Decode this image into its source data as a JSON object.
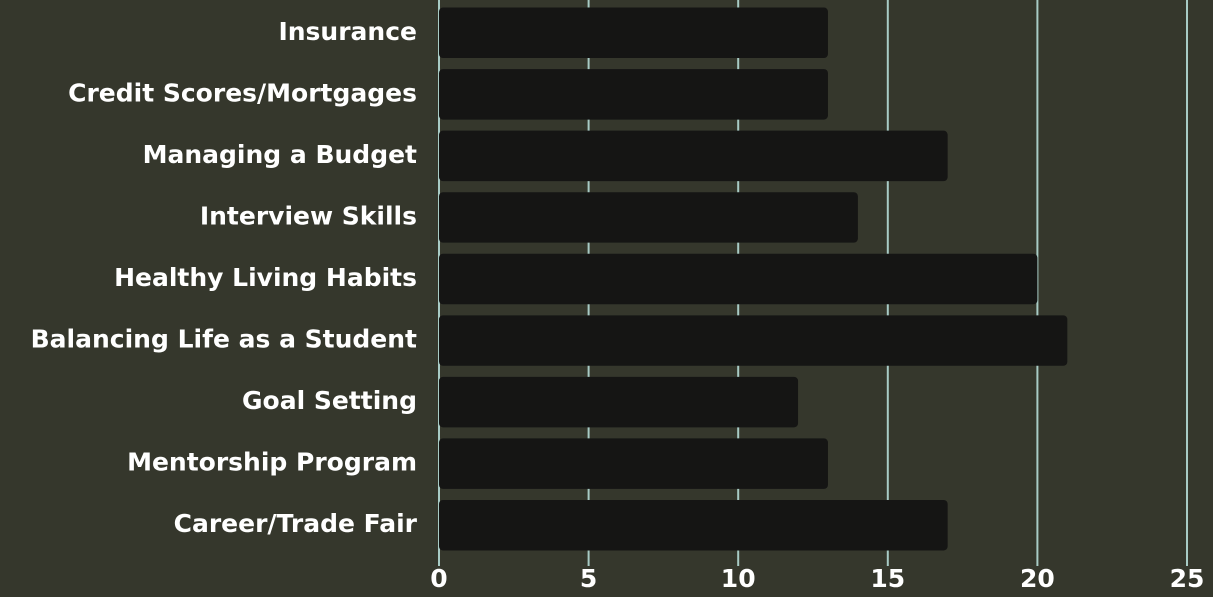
{
  "chart_data": {
    "type": "bar",
    "orientation": "horizontal",
    "categories": [
      "Insurance",
      "Credit Scores/Mortgages",
      "Managing a Budget",
      "Interview Skills",
      "Healthy Living Habits",
      "Balancing Life as a Student",
      "Goal Setting",
      "Mentorship Program",
      "Career/Trade Fair"
    ],
    "values": [
      13,
      13,
      17,
      14,
      20,
      21,
      12,
      13,
      17
    ],
    "color": "#151514",
    "xlim": [
      0,
      25
    ],
    "xticks": [
      0,
      5,
      10,
      15,
      20,
      25
    ],
    "grid": true
  }
}
